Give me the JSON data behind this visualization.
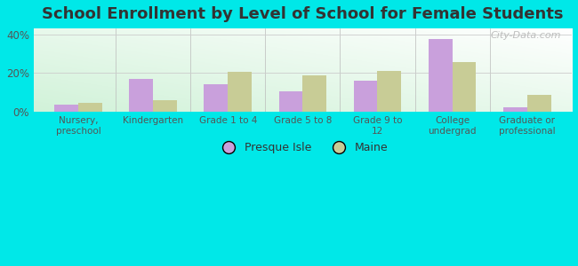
{
  "title": "School Enrollment by Level of School for Female Students",
  "categories": [
    "Nursery,\npreschool",
    "Kindergarten",
    "Grade 1 to 4",
    "Grade 5 to 8",
    "Grade 9 to\n12",
    "College\nundergrad",
    "Graduate or\nprofessional"
  ],
  "presque_isle": [
    3.5,
    17.0,
    14.0,
    10.5,
    16.0,
    37.5,
    2.5
  ],
  "maine": [
    4.5,
    6.0,
    20.5,
    19.0,
    21.0,
    25.5,
    8.5
  ],
  "presque_isle_color": "#c9a0dc",
  "maine_color": "#c8cc96",
  "background_outer": "#00e8e8",
  "title_fontsize": 13,
  "ylabel_ticks": [
    "0%",
    "20%",
    "40%"
  ],
  "yticks": [
    0,
    20,
    40
  ],
  "ylim": [
    0,
    43
  ],
  "watermark": "City-Data.com"
}
